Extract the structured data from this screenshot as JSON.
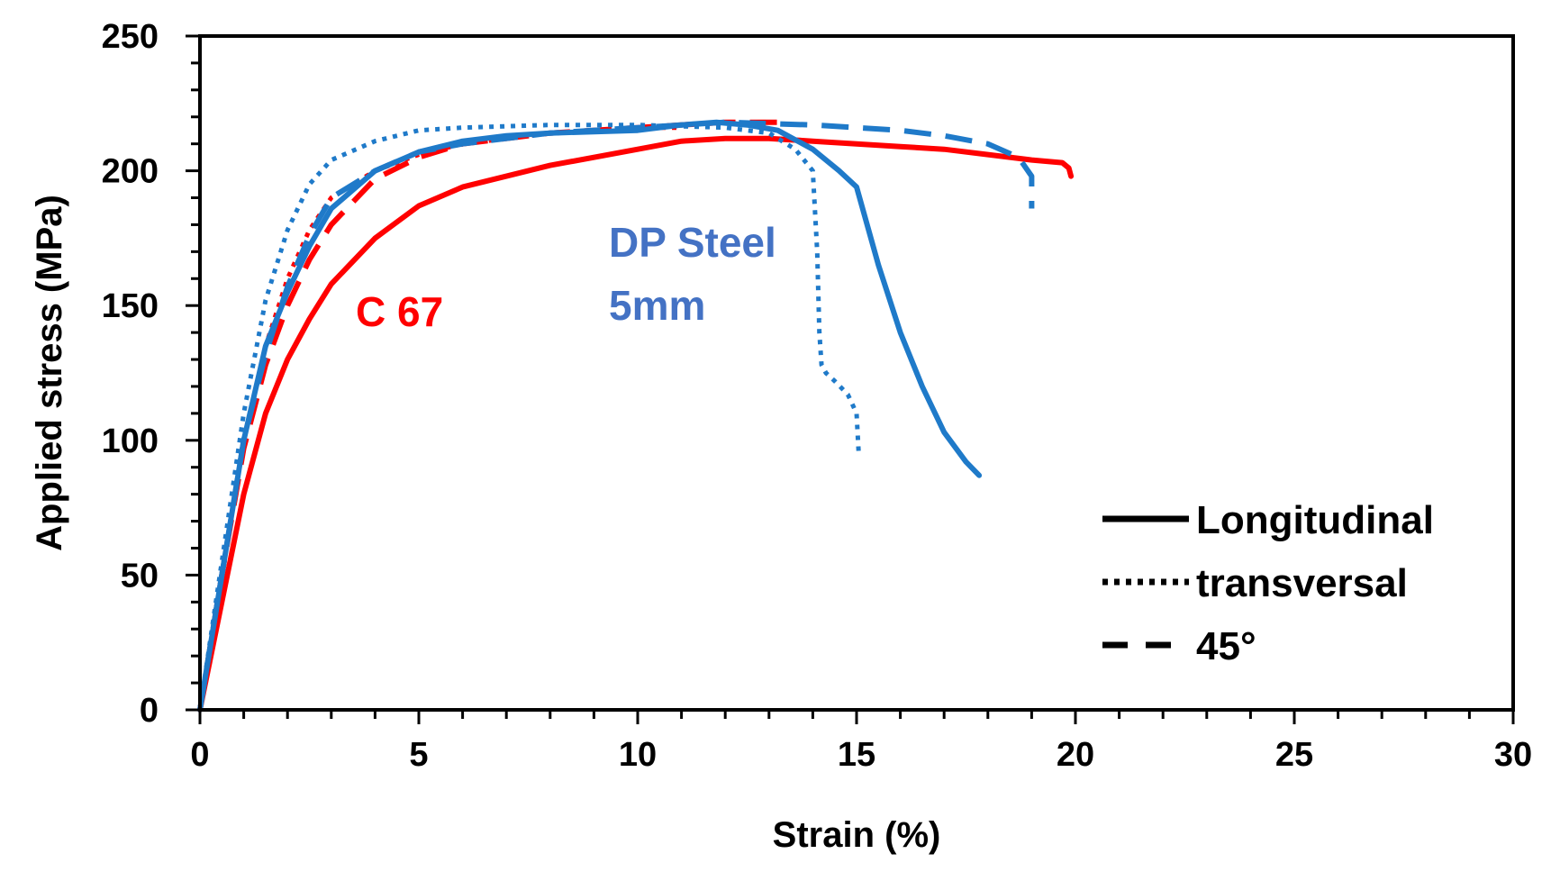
{
  "chart_data": {
    "type": "line",
    "title": "",
    "xlabel": "Strain (%)",
    "ylabel": "Applied stress (MPa)",
    "xlim": [
      0,
      30
    ],
    "ylim": [
      0,
      250
    ],
    "x_ticks": [
      0,
      5,
      10,
      15,
      20,
      25,
      30
    ],
    "y_ticks": [
      0,
      50,
      100,
      150,
      200,
      250
    ],
    "x_minor_step": 1,
    "y_minor_step": 10,
    "grid": false,
    "legend_position": "bottom-right",
    "colors": {
      "C67": "#ff0000",
      "DP": "#1f7ac9",
      "DP_label": "#4472c4",
      "legend": "#000000"
    },
    "annotations": [
      {
        "id": "c67",
        "text": "C 67",
        "color": "#ff0000"
      },
      {
        "id": "dp-line1",
        "text": "DP Steel",
        "color": "#4472c4"
      },
      {
        "id": "dp-line2",
        "text": "5mm",
        "color": "#4472c4"
      }
    ],
    "legend": [
      {
        "label": "Longitudinal",
        "style": "solid"
      },
      {
        "label": "transversal",
        "style": "dotted"
      },
      {
        "label": "45°",
        "style": "dashed"
      }
    ],
    "series": [
      {
        "name": "C 67 Longitudinal",
        "material": "C 67",
        "direction": "Longitudinal",
        "color": "#ff0000",
        "style": "solid",
        "x": [
          0,
          0.5,
          1,
          1.5,
          2,
          2.5,
          3,
          4,
          5,
          6,
          8,
          10,
          11,
          12,
          13,
          14,
          15,
          16,
          17,
          18,
          19,
          19.7,
          19.85,
          19.9
        ],
        "y": [
          0,
          40,
          80,
          110,
          130,
          145,
          158,
          175,
          187,
          194,
          202,
          208,
          211,
          212,
          212,
          211,
          210,
          209,
          208,
          206,
          204,
          203,
          201,
          198
        ]
      },
      {
        "name": "C 67 transversal",
        "material": "C 67",
        "direction": "transversal",
        "color": "#ff0000",
        "style": "dotted",
        "x": [
          0,
          0.5,
          1,
          1.5,
          2,
          2.5,
          3,
          4,
          5,
          6,
          8,
          10,
          11
        ],
        "y": [
          0,
          50,
          100,
          135,
          160,
          178,
          190,
          200,
          206,
          210,
          214,
          216,
          216
        ]
      },
      {
        "name": "C 67 45°",
        "material": "C 67",
        "direction": "45°",
        "color": "#ff0000",
        "style": "dashed",
        "x": [
          0,
          0.5,
          1,
          1.5,
          2,
          2.5,
          3,
          4,
          5,
          6,
          8,
          10,
          12,
          13.5
        ],
        "y": [
          0,
          50,
          97,
          128,
          150,
          167,
          180,
          197,
          205,
          210,
          214,
          216,
          218,
          218
        ]
      },
      {
        "name": "DP Steel Longitudinal",
        "material": "DP Steel",
        "direction": "Longitudinal",
        "color": "#1f7ac9",
        "style": "solid",
        "x": [
          0,
          0.5,
          1,
          1.5,
          2,
          2.5,
          3,
          4,
          5,
          6,
          7,
          8,
          10,
          11,
          11.8,
          12.5,
          13.2,
          14,
          14.6,
          15,
          15.5,
          16,
          16.5,
          17,
          17.5,
          17.8
        ],
        "y": [
          0,
          50,
          100,
          135,
          155,
          172,
          186,
          200,
          207,
          211,
          213,
          214,
          215,
          217,
          218,
          217,
          215,
          208,
          200,
          194,
          165,
          140,
          120,
          103,
          92,
          87
        ]
      },
      {
        "name": "DP Steel transversal",
        "material": "DP Steel",
        "direction": "transversal",
        "color": "#1f7ac9",
        "style": "dotted",
        "x": [
          0,
          0.5,
          1,
          1.5,
          2,
          2.5,
          3,
          4,
          5,
          6,
          8,
          10,
          12,
          13,
          13.6,
          14,
          14.1,
          14.15,
          14.2,
          14.3,
          14.5,
          14.8,
          15,
          15.05
        ],
        "y": [
          0,
          55,
          110,
          152,
          178,
          195,
          204,
          211,
          215,
          216,
          217,
          217,
          216,
          214,
          208,
          200,
          170,
          140,
          128,
          125,
          122,
          117,
          110,
          95
        ]
      },
      {
        "name": "DP Steel 45°",
        "material": "DP Steel",
        "direction": "45°",
        "color": "#1f7ac9",
        "style": "dashed",
        "x": [
          0,
          0.5,
          1,
          1.5,
          2,
          2.5,
          3,
          4,
          5,
          6,
          8,
          10,
          12,
          14,
          15,
          16,
          17,
          18,
          18.7,
          19,
          19,
          19
        ],
        "y": [
          0,
          50,
          100,
          132,
          157,
          176,
          190,
          200,
          207,
          210,
          214,
          216,
          218,
          217,
          216,
          215,
          213,
          210,
          205,
          198,
          192,
          186
        ]
      }
    ]
  }
}
